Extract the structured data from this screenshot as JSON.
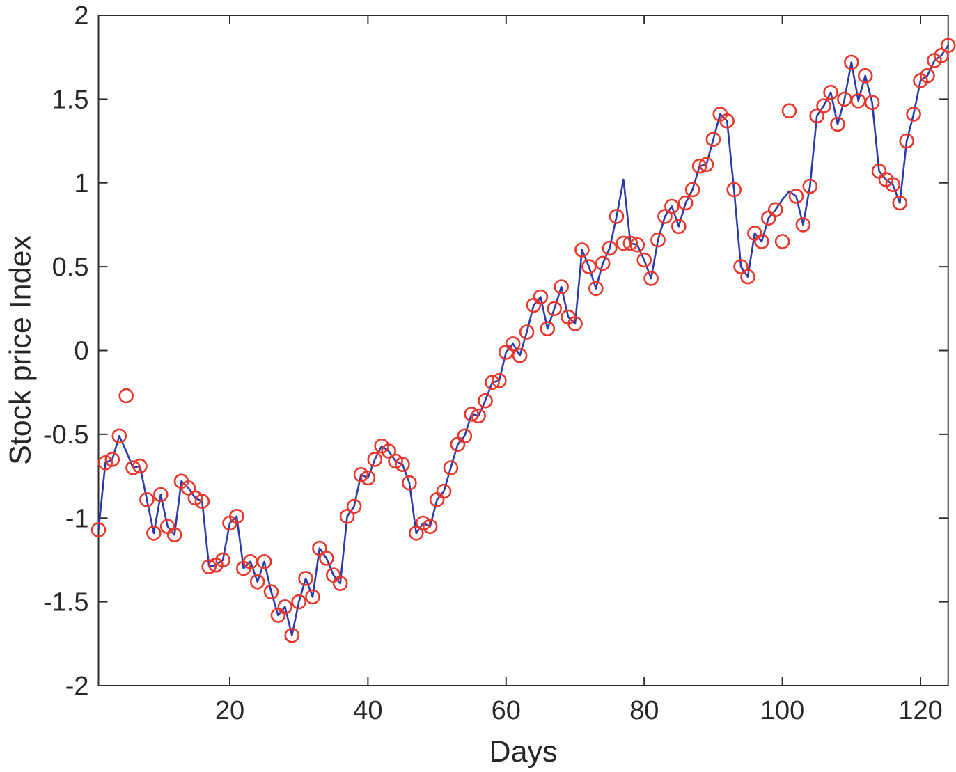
{
  "figure": {
    "background": "#ffffff",
    "axis_color": "#2c2c2c",
    "tick_label_color": "#262626",
    "tick_label_font_px": 38,
    "axis_label_font_px": 43
  },
  "chart_data": {
    "type": "line",
    "title": "",
    "xlabel": "Days",
    "ylabel": "Stock price Index",
    "xlim": [
      1,
      124
    ],
    "ylim": [
      -2,
      2
    ],
    "xticks": [
      20,
      40,
      60,
      80,
      100,
      120
    ],
    "yticks": [
      -2,
      -1.5,
      -1,
      -0.5,
      0,
      0.5,
      1,
      1.5,
      2
    ],
    "grid": false,
    "legend": null,
    "tick_dir": "in",
    "box": true,
    "x": {
      "start": 1,
      "step": 1,
      "count": 124
    },
    "series": [
      {
        "name": "stock price observations",
        "style": "markers",
        "marker": "open-circle",
        "color": "#e8362b",
        "values": [
          -1.07,
          -0.67,
          -0.65,
          -0.51,
          -0.27,
          -0.7,
          -0.69,
          -0.89,
          -1.09,
          -0.86,
          -1.05,
          -1.1,
          -0.78,
          -0.82,
          -0.88,
          -0.9,
          -1.29,
          -1.28,
          -1.25,
          -1.03,
          -0.99,
          -1.3,
          -1.26,
          -1.38,
          -1.26,
          -1.44,
          -1.58,
          -1.53,
          -1.7,
          -1.5,
          -1.36,
          -1.47,
          -1.18,
          -1.24,
          -1.34,
          -1.39,
          -0.99,
          -0.93,
          -0.74,
          -0.76,
          -0.65,
          -0.57,
          -0.6,
          -0.66,
          -0.68,
          -0.79,
          -1.09,
          -1.03,
          -1.05,
          -0.89,
          -0.84,
          -0.7,
          -0.56,
          -0.51,
          -0.38,
          -0.39,
          -0.3,
          -0.19,
          -0.18,
          -0.01,
          0.04,
          -0.03,
          0.11,
          0.27,
          0.32,
          0.13,
          0.25,
          0.38,
          0.2,
          0.16,
          0.6,
          0.5,
          0.37,
          0.52,
          0.61,
          0.8,
          0.64,
          0.64,
          0.63,
          0.54,
          0.43,
          0.66,
          0.8,
          0.86,
          0.74,
          0.88,
          0.96,
          1.1,
          1.11,
          1.26,
          1.41,
          1.37,
          0.96,
          0.5,
          0.44,
          0.7,
          0.65,
          0.79,
          0.84,
          0.65,
          1.43,
          0.92,
          0.75,
          0.98,
          1.4,
          1.46,
          1.54,
          1.35,
          1.5,
          1.72,
          1.49,
          1.64,
          1.48,
          1.07,
          1.02,
          0.99,
          0.88,
          1.25,
          1.41,
          1.61,
          1.64,
          1.73,
          1.76,
          1.82
        ]
      },
      {
        "name": "model line",
        "style": "line",
        "color": "#2a3aad",
        "values_from": "stock price observations",
        "overrides": {
          "5": -0.6,
          "77": 1.02,
          "100": 0.9,
          "101": 0.95
        }
      }
    ]
  }
}
